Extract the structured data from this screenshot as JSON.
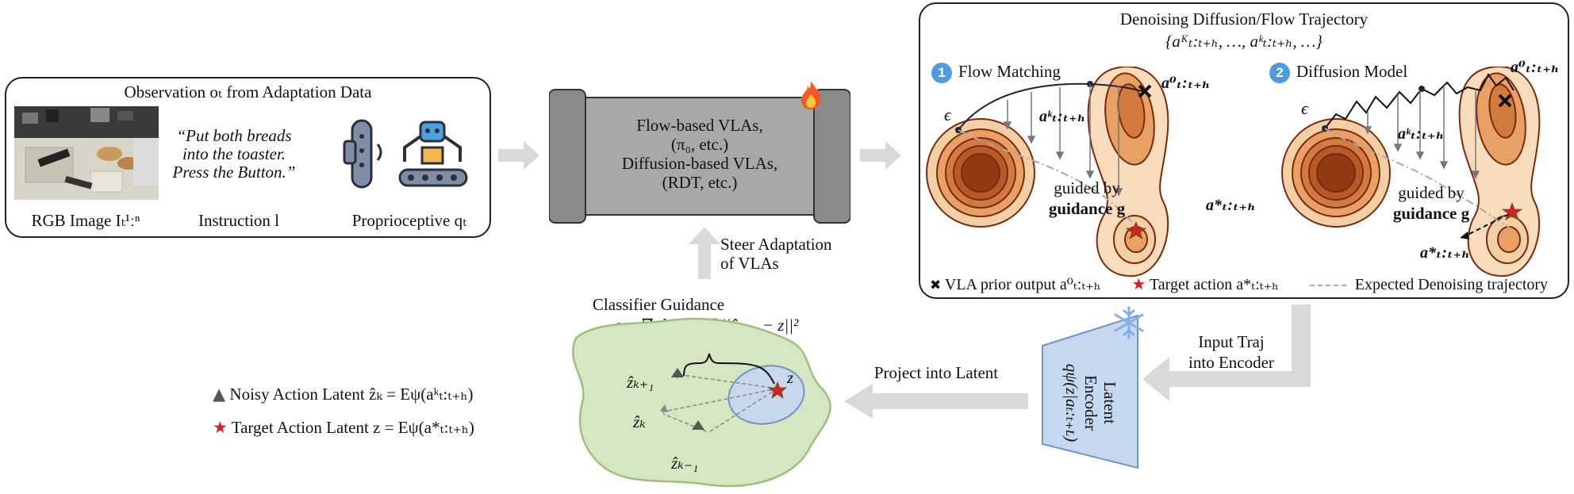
{
  "observation": {
    "title": "Observation oₜ from Adaptation Data",
    "quote": "“Put both breads into the toaster. Press the Button.”",
    "rgb_label": "RGB Image Iₜ¹ːⁿ",
    "instruction_label": "Instruction l",
    "proprio_label": "Proprioceptive qₜ"
  },
  "vla": {
    "line1": "Flow-based VLAs,",
    "line2": "(π₀, etc.)",
    "line3": "Diffusion-based VLAs,",
    "line4": "(RDT, etc.)",
    "fire_icon": "fire-icon"
  },
  "steer": {
    "line1": "Steer Adaptation",
    "line2": "of VLAs"
  },
  "denoising": {
    "title": "Denoising Diffusion/Flow Trajectory",
    "subtitle": "{aᴷₜ:ₜ₊ₕ, …, aᵏₜ:ₜ₊ₕ, …}",
    "flow": {
      "badge": "1",
      "label": "Flow Matching"
    },
    "diffusion": {
      "badge": "2",
      "label": "Diffusion Model"
    },
    "epsilon": "ϵ",
    "a0": "a⁰ₜ:ₜ₊ₕ",
    "ak": "aᵏₜ:ₜ₊ₕ",
    "astar": "a*ₜ:ₜ₊ₕ",
    "guided_line1": "guided by",
    "guided_line2": "guidance g",
    "legend_prior": "VLA prior output a⁰ₜ:ₜ₊ₕ",
    "legend_target": "Target action a*ₜ:ₜ₊ₕ",
    "legend_expected": "Expected Denoising trajectory"
  },
  "classifier": {
    "title": "Classifier Guidance",
    "formula": "g = ∇ dₖ₊₁ = ∇ ||ẑₖ₊₁ − z||²",
    "z": "z",
    "zk1": "ẑₖ₊₁",
    "zk": "ẑₖ",
    "zkm1": "ẑₖ₋₁"
  },
  "legend": {
    "noisy": "Noisy Action Latent  ẑₖ = Eψ(aᵏₜ:ₜ₊ₕ)",
    "target": "Target Action Latent   z = Eψ(a*ₜ:ₜ₊ₕ)"
  },
  "arrows": {
    "project": "Project into Latent",
    "input_line1": "Input Traj",
    "input_line2": "into Encoder"
  },
  "encoder": {
    "line1": "Latent",
    "line2": "Encoder",
    "line3": "qψ(z|aₜ:ₜ₊ʟ)",
    "snow_icon": "snowflake-icon"
  },
  "colors": {
    "contour_dark": "#8a3410",
    "contour_mid": "#c8612d",
    "contour_light": "#f0c89d",
    "latent_fill": "#d5e6c2",
    "latent_ellipse": "#c8d8ec",
    "encoder_fill": "#c5d8ef",
    "vla_fill": "#a8a8a8",
    "target_red": "#d42020",
    "badge_blue": "#4d9be0"
  }
}
